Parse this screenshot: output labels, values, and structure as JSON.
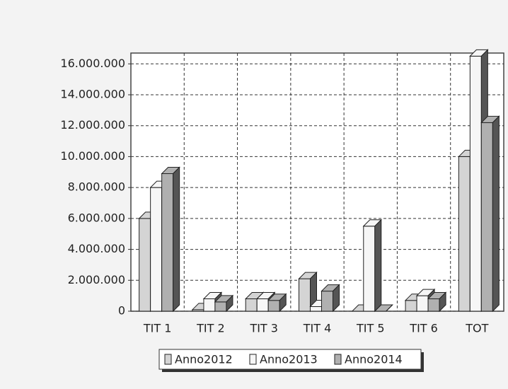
{
  "chart_data": {
    "type": "bar3d",
    "categories": [
      "TIT 1",
      "TIT 2",
      "TIT 3",
      "TIT 4",
      "TIT 5",
      "TIT 6",
      "TOT"
    ],
    "series": [
      {
        "name": "Anno2012",
        "color": "#d4d4d4",
        "values": [
          6000000,
          100000,
          800000,
          2100000,
          0,
          700000,
          10000000
        ]
      },
      {
        "name": "Anno2013",
        "color": "#f6f6f6",
        "values": [
          8000000,
          800000,
          800000,
          300000,
          5500000,
          1000000,
          16500000
        ]
      },
      {
        "name": "Anno2014",
        "color": "#b0b0b0",
        "values": [
          8900000,
          600000,
          700000,
          1300000,
          0,
          800000,
          12200000
        ]
      }
    ],
    "ylim": [
      0,
      16700000
    ],
    "yticks": [
      0,
      {
        "value": 2000000,
        "label": "2.000.000"
      },
      {
        "value": 4000000,
        "label": "4.000.000"
      },
      {
        "value": 6000000,
        "label": "6.000.000"
      },
      {
        "value": 8000000,
        "label": "8.000.000"
      },
      {
        "value": 10000000,
        "label": "10.000.000"
      },
      {
        "value": 12000000,
        "label": "12.000.000"
      },
      {
        "value": 14000000,
        "label": "14.000.000"
      },
      {
        "value": 16000000,
        "label": "16.000.000"
      }
    ],
    "grid": true
  }
}
